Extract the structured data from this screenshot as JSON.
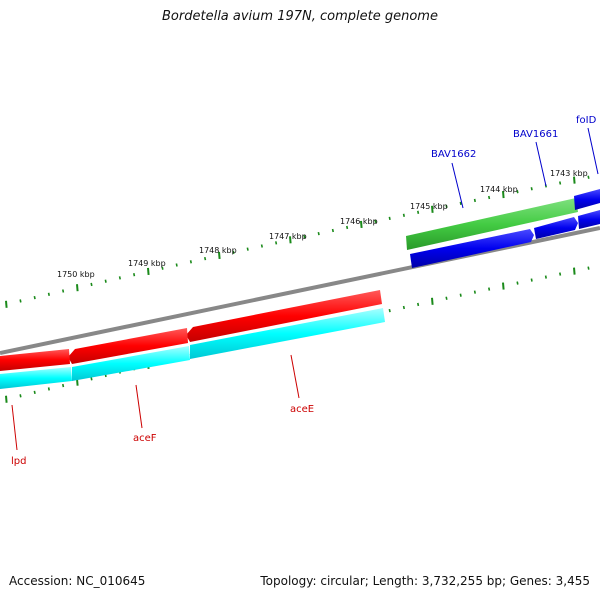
{
  "map": {
    "title": "Bordetella avium 197N, complete genome",
    "accession_text": "Accession: NC_010645",
    "summary_text": "Topology: circular; Length: 3,732,255 bp; Genes: 3,455"
  },
  "colors": {
    "backbone": "#888888",
    "tick": "#1a8a1a",
    "gene_reverse": "#ff0000",
    "gene_forward_blue": "#0000ee",
    "cds_cyan": "#00ffff",
    "cds_green": "#44cc44",
    "label_red": "#cc0000",
    "label_blue": "#0000cc"
  },
  "ticks": {
    "labels": [
      "1743 kbp",
      "1744 kbp",
      "1745 kbp",
      "1746 kbp",
      "1747 kbp",
      "1748 kbp",
      "1749 kbp",
      "1750 kbp"
    ]
  },
  "genes": [
    {
      "name": "foID",
      "strand": "forward"
    },
    {
      "name": "BAV1661",
      "strand": "forward"
    },
    {
      "name": "BAV1662",
      "strand": "forward"
    },
    {
      "name": "aceE",
      "strand": "reverse"
    },
    {
      "name": "aceF",
      "strand": "reverse"
    },
    {
      "name": "lpd",
      "strand": "reverse"
    }
  ]
}
